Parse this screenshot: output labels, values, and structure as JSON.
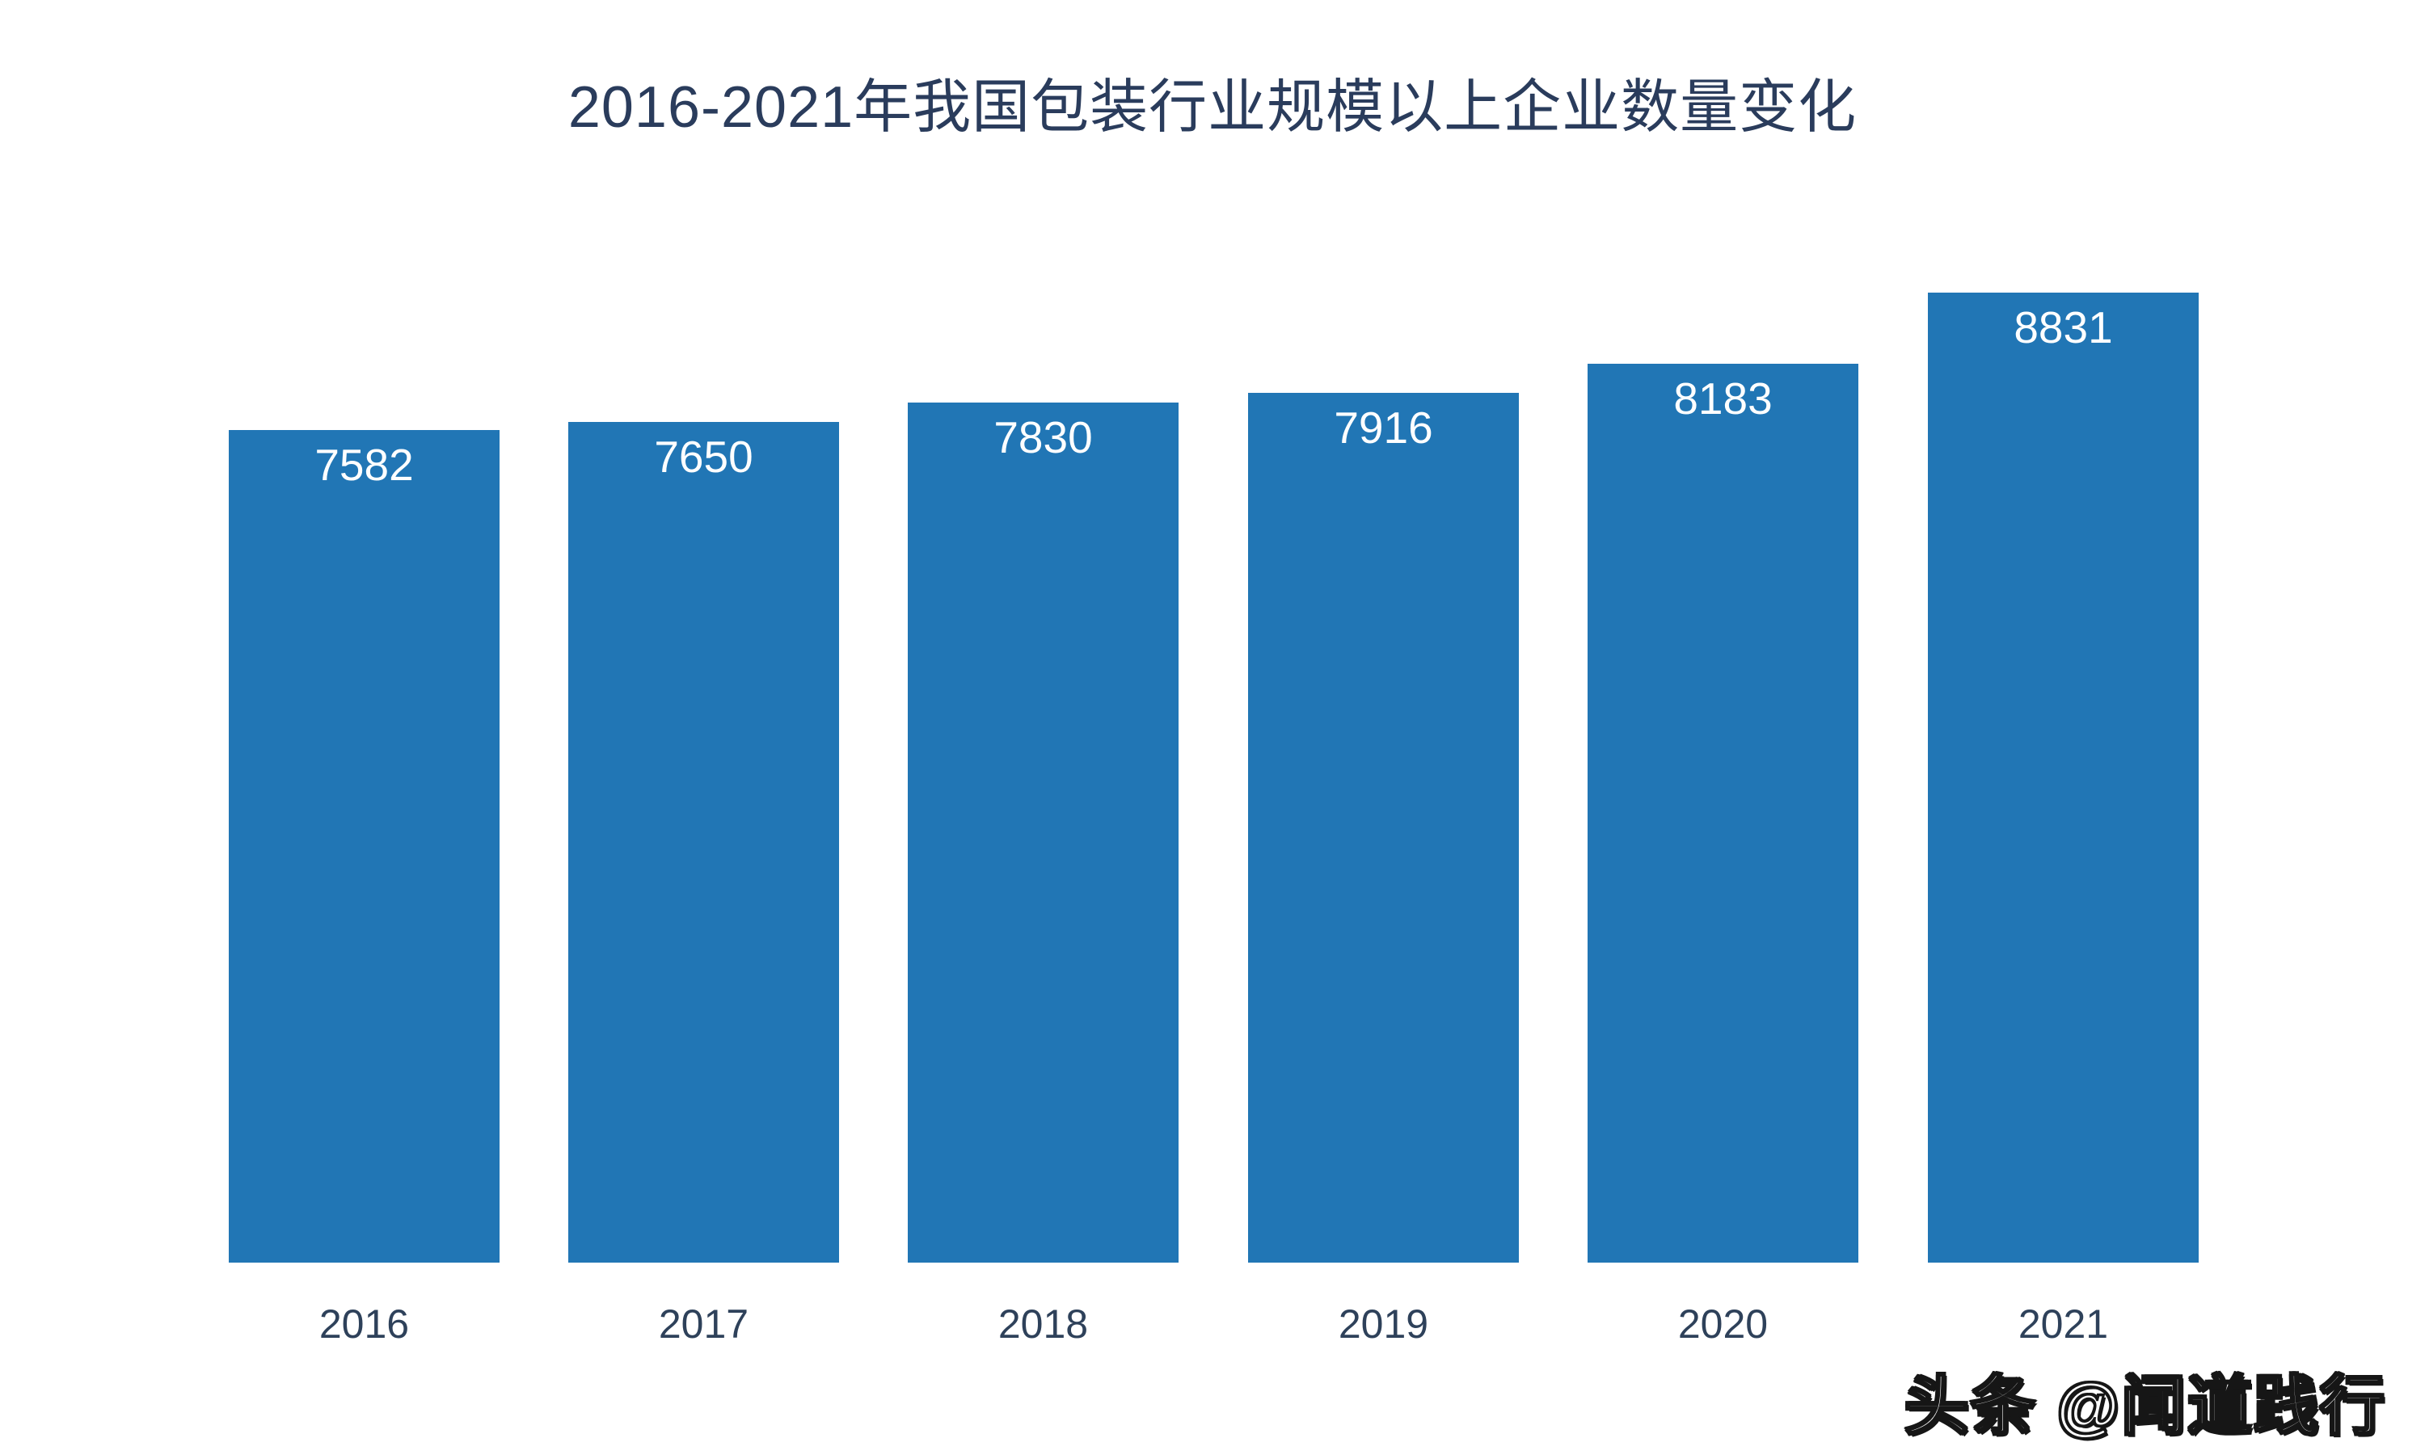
{
  "chart_data": {
    "type": "bar",
    "title": "2016-2021年我国包装行业规模以上企业数量变化",
    "categories": [
      "2016",
      "2017",
      "2018",
      "2019",
      "2020",
      "2021"
    ],
    "values": [
      7582,
      7650,
      7830,
      7916,
      8183,
      8831
    ],
    "xlabel": "",
    "ylabel": "",
    "ylim": [
      0,
      8831
    ],
    "grid": false,
    "legend": "none",
    "value_labels_shown": true,
    "colors": {
      "bar": "#2176B5",
      "title": "#2A3C5C",
      "axis_label": "#2E415A",
      "value_label": "#ffffff",
      "background": "#ffffff"
    }
  },
  "watermark": {
    "text": "头条 @闻道践行"
  }
}
